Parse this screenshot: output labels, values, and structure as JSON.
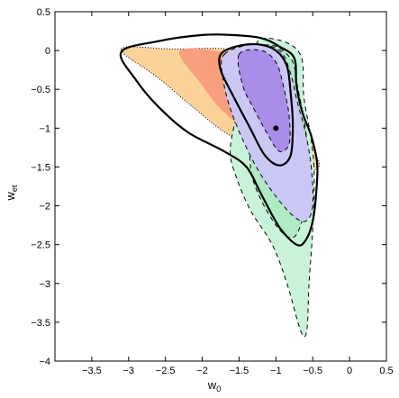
{
  "chart_data": {
    "type": "area",
    "xlabel": "w",
    "xlabel_sub": "0",
    "ylabel": "w",
    "ylabel_sub": "et",
    "xlim": [
      -4,
      0.5
    ],
    "ylim": [
      -4,
      0.5
    ],
    "x_ticks": [
      -3.5,
      -3,
      -2.5,
      -2,
      -1.5,
      -1,
      -0.5,
      0,
      0.5
    ],
    "x_tick_labels": [
      "−3.5",
      "−3",
      "−2.5",
      "−2",
      "−1.5",
      "−1",
      "−0.5",
      "0",
      "0.5"
    ],
    "y_ticks": [
      0.5,
      0,
      -0.5,
      -1,
      -1.5,
      -2,
      -2.5,
      -3,
      -3.5,
      -4
    ],
    "y_tick_labels": [
      "0.5",
      "0",
      "−0.5",
      "−1",
      "−1.5",
      "−2",
      "−2.5",
      "−3",
      "−3.5",
      "−4"
    ],
    "grid": false,
    "marker": {
      "x": -1.0,
      "y": -1.0
    },
    "series": [
      {
        "fill": "#fbd29a",
        "stroke": "#000000",
        "dash": "1,2",
        "points": [
          [
            -3.1,
            0.02
          ],
          [
            -2.4,
            0.02
          ],
          [
            -1.55,
            0.0
          ],
          [
            -1.1,
            -0.3
          ],
          [
            -0.85,
            -0.6
          ],
          [
            -0.6,
            -1.0
          ],
          [
            -0.45,
            -1.35
          ],
          [
            -0.42,
            -1.5
          ],
          [
            -0.6,
            -1.55
          ],
          [
            -0.95,
            -1.45
          ],
          [
            -1.3,
            -1.25
          ],
          [
            -1.7,
            -1.05
          ],
          [
            -2.1,
            -0.75
          ],
          [
            -2.6,
            -0.35
          ],
          [
            -3.1,
            0.02
          ]
        ]
      },
      {
        "fill": "#f79f7e",
        "stroke": "none",
        "dash": "",
        "points": [
          [
            -2.3,
            0.0
          ],
          [
            -1.6,
            -0.05
          ],
          [
            -1.15,
            -0.35
          ],
          [
            -1.05,
            -1.0
          ],
          [
            -1.25,
            -1.1
          ],
          [
            -1.7,
            -0.8
          ],
          [
            -2.0,
            -0.45
          ],
          [
            -2.3,
            0.0
          ]
        ]
      },
      {
        "fill": "#c9f3d8",
        "stroke": "#000000",
        "dash": "5,4",
        "points": [
          [
            -1.2,
            0.15
          ],
          [
            -0.85,
            0.1
          ],
          [
            -0.65,
            -0.1
          ],
          [
            -0.62,
            -0.6
          ],
          [
            -0.52,
            -1.15
          ],
          [
            -0.48,
            -1.6
          ],
          [
            -0.5,
            -2.3
          ],
          [
            -0.55,
            -3.0
          ],
          [
            -0.58,
            -3.6
          ],
          [
            -0.66,
            -3.62
          ],
          [
            -0.85,
            -3.0
          ],
          [
            -1.05,
            -2.5
          ],
          [
            -1.35,
            -2.05
          ],
          [
            -1.55,
            -1.6
          ],
          [
            -1.62,
            -1.3
          ],
          [
            -1.55,
            -0.9
          ],
          [
            -1.4,
            -0.4
          ],
          [
            -1.3,
            -0.05
          ],
          [
            -1.2,
            0.15
          ]
        ]
      },
      {
        "fill": "#aeeac4",
        "stroke": "#000000",
        "dash": "5,4",
        "points": [
          [
            -1.15,
            0.05
          ],
          [
            -0.8,
            -0.1
          ],
          [
            -0.7,
            -0.5
          ],
          [
            -0.6,
            -1.0
          ],
          [
            -0.56,
            -1.5
          ],
          [
            -0.6,
            -2.0
          ],
          [
            -0.75,
            -2.4
          ],
          [
            -1.0,
            -2.25
          ],
          [
            -1.3,
            -1.7
          ],
          [
            -1.35,
            -1.2
          ],
          [
            -1.25,
            -0.6
          ],
          [
            -1.15,
            0.05
          ]
        ]
      },
      {
        "fill": "#cbc7f5",
        "stroke": "#000000",
        "dash": "5,4",
        "points": [
          [
            -1.7,
            -0.05
          ],
          [
            -1.3,
            0.08
          ],
          [
            -0.95,
            0.0
          ],
          [
            -0.8,
            -0.3
          ],
          [
            -0.7,
            -0.7
          ],
          [
            -0.6,
            -1.05
          ],
          [
            -0.52,
            -1.5
          ],
          [
            -0.5,
            -2.0
          ],
          [
            -0.6,
            -2.2
          ],
          [
            -0.8,
            -2.1
          ],
          [
            -1.1,
            -1.75
          ],
          [
            -1.35,
            -1.35
          ],
          [
            -1.6,
            -0.8
          ],
          [
            -1.72,
            -0.35
          ],
          [
            -1.7,
            -0.05
          ]
        ]
      },
      {
        "fill": "#aa8de8",
        "stroke": "#000000",
        "dash": "5,4",
        "points": [
          [
            -1.5,
            -0.05
          ],
          [
            -1.2,
            0.0
          ],
          [
            -1.0,
            -0.15
          ],
          [
            -0.9,
            -0.45
          ],
          [
            -0.82,
            -0.85
          ],
          [
            -0.82,
            -1.2
          ],
          [
            -0.95,
            -1.3
          ],
          [
            -1.1,
            -1.1
          ],
          [
            -1.3,
            -0.75
          ],
          [
            -1.45,
            -0.45
          ],
          [
            -1.5,
            -0.05
          ]
        ]
      },
      {
        "fill": "none",
        "stroke": "#000000",
        "dash": "",
        "stroke_width": 2.2,
        "points": [
          [
            -3.1,
            -0.02
          ],
          [
            -2.6,
            0.12
          ],
          [
            -2.0,
            0.2
          ],
          [
            -1.6,
            0.2
          ],
          [
            -1.2,
            0.16
          ],
          [
            -0.95,
            0.05
          ],
          [
            -0.75,
            -0.1
          ],
          [
            -0.72,
            -0.45
          ],
          [
            -0.64,
            -0.8
          ],
          [
            -0.52,
            -1.1
          ],
          [
            -0.44,
            -1.45
          ],
          [
            -0.45,
            -1.8
          ],
          [
            -0.5,
            -2.2
          ],
          [
            -0.6,
            -2.45
          ],
          [
            -0.72,
            -2.5
          ],
          [
            -0.95,
            -2.28
          ],
          [
            -1.2,
            -1.85
          ],
          [
            -1.4,
            -1.5
          ],
          [
            -1.7,
            -1.3
          ],
          [
            -2.2,
            -1.05
          ],
          [
            -2.6,
            -0.72
          ],
          [
            -2.9,
            -0.38
          ],
          [
            -3.1,
            -0.02
          ]
        ]
      },
      {
        "fill": "none",
        "stroke": "#000000",
        "dash": "",
        "stroke_width": 2.2,
        "points": [
          [
            -1.75,
            -0.05
          ],
          [
            -1.55,
            0.05
          ],
          [
            -1.25,
            0.08
          ],
          [
            -1.0,
            0.0
          ],
          [
            -0.85,
            -0.2
          ],
          [
            -0.8,
            -0.55
          ],
          [
            -0.77,
            -0.95
          ],
          [
            -0.8,
            -1.35
          ],
          [
            -0.95,
            -1.48
          ],
          [
            -1.15,
            -1.35
          ],
          [
            -1.35,
            -1.0
          ],
          [
            -1.6,
            -0.55
          ],
          [
            -1.75,
            -0.25
          ],
          [
            -1.75,
            -0.05
          ]
        ]
      }
    ]
  }
}
